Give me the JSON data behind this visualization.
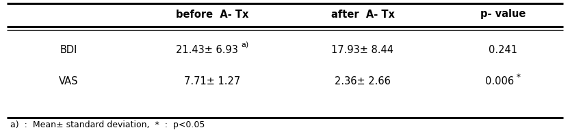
{
  "col_headers": [
    "",
    "before  A- Tx",
    "after  A- Tx",
    "p- value"
  ],
  "rows": [
    [
      "BDI",
      "21.43± 6.93",
      "a)",
      "17.93± 8.44",
      "0.241"
    ],
    [
      "VAS",
      "7.71± 1.27",
      "",
      "2.36± 2.66",
      "0.006*"
    ]
  ],
  "footnote": "a)  :  Mean± standard deviation,  *  :  p<0.05",
  "background_color": "#ffffff",
  "text_color": "#000000",
  "font_size": 10.5,
  "header_font_size": 10.5
}
